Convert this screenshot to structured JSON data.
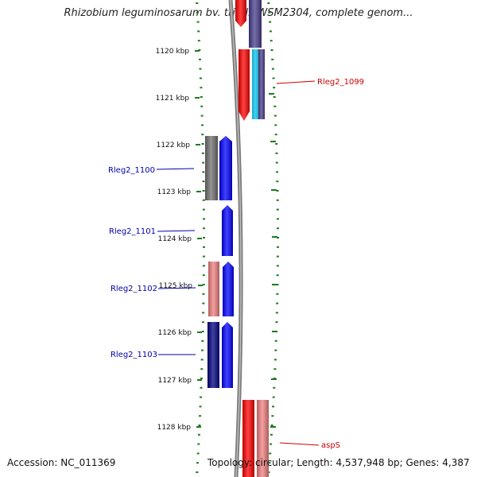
{
  "title": "Rhizobium leguminosarum bv. trifolii WSM2304, complete genom...",
  "footer": {
    "accession": "Accession: NC_011369",
    "summary": "Topology: circular; Length: 4,537,948 bp; Genes: 4,387"
  },
  "ticks": [
    "1120 kbp",
    "1121 kbp",
    "1122 kbp",
    "1123 kbp",
    "1124 kbp",
    "1125 kbp",
    "1126 kbp",
    "1127 kbp",
    "1128 kbp"
  ],
  "genes": [
    {
      "label": "Rleg2_1099",
      "color": "#cc0000"
    },
    {
      "label": "Rleg2_1100",
      "color": "#0000aa"
    },
    {
      "label": "Rleg2_1101",
      "color": "#0000aa"
    },
    {
      "label": "Rleg2_1102",
      "color": "#0000aa"
    },
    {
      "label": "Rleg2_1103",
      "color": "#0000aa"
    },
    {
      "label": "aspS",
      "color": "#cc0000"
    }
  ],
  "colors": {
    "tick": "#1f7a1f",
    "backbone": "#808080",
    "blue": "#0000ff",
    "red": "#ff0000",
    "gray": "#707070",
    "pink": "#f08080",
    "navy": "#000080",
    "purple": "#483d8b",
    "cyan": "#1ec8f0"
  }
}
